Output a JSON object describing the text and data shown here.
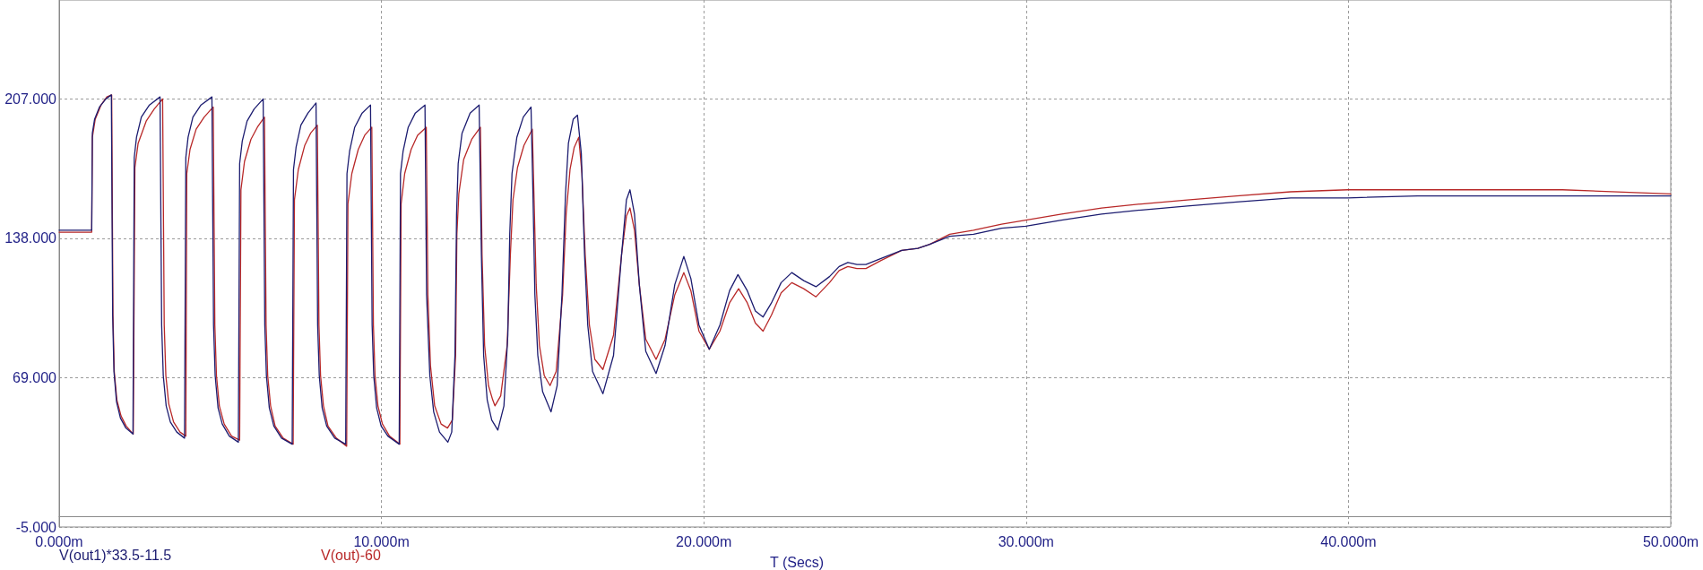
{
  "chart_data": {
    "type": "line",
    "xlabel": "T (Secs)",
    "series": [
      {
        "name": "V(out1)*33.5-11.5",
        "color": "#1c1c70",
        "x": [
          0,
          1.01,
          1.03,
          1.1,
          1.25,
          1.45,
          1.62,
          1.66,
          1.7,
          1.78,
          1.9,
          2.07,
          2.29,
          2.33,
          2.4,
          2.55,
          2.8,
          3.13,
          3.18,
          3.23,
          3.32,
          3.45,
          3.65,
          3.89,
          3.93,
          4.0,
          4.15,
          4.4,
          4.74,
          4.79,
          4.84,
          4.93,
          5.06,
          5.28,
          5.56,
          5.6,
          5.68,
          5.83,
          6.05,
          6.33,
          6.38,
          6.43,
          6.52,
          6.66,
          6.9,
          7.23,
          7.27,
          7.35,
          7.5,
          7.72,
          7.97,
          8.02,
          8.07,
          8.16,
          8.3,
          8.55,
          8.89,
          8.93,
          9.01,
          9.17,
          9.4,
          9.66,
          9.71,
          9.76,
          9.85,
          9.99,
          10.2,
          10.55,
          10.59,
          10.67,
          10.83,
          11.05,
          11.35,
          11.4,
          11.5,
          11.62,
          11.8,
          12.06,
          12.18,
          12.28,
          12.33,
          12.38,
          12.5,
          12.75,
          13.03,
          13.1,
          13.17,
          13.28,
          13.42,
          13.61,
          13.8,
          13.92,
          13.98,
          14.05,
          14.2,
          14.4,
          14.64,
          14.7,
          14.76,
          14.85,
          15.0,
          15.26,
          15.45,
          15.6,
          15.71,
          15.8,
          15.95,
          16.08,
          16.2,
          16.3,
          16.4,
          16.55,
          16.87,
          17.2,
          17.45,
          17.6,
          17.71,
          17.85,
          18.0,
          18.2,
          18.52,
          18.8,
          19.1,
          19.38,
          19.6,
          19.85,
          20.17,
          20.5,
          20.8,
          21.06,
          21.35,
          21.6,
          21.84,
          22.1,
          22.4,
          22.73,
          23.1,
          23.48,
          23.9,
          24.2,
          24.47,
          24.75,
          25.03,
          25.5,
          26.14,
          26.64,
          27.01,
          27.63,
          28.37,
          29.24,
          29.99,
          31.1,
          32.34,
          33.58,
          35.0,
          36.53,
          38.21,
          39.98,
          42.14,
          44.39,
          46.64,
          50
        ],
        "values": [
          142,
          142,
          190,
          197,
          203,
          207,
          209,
          100,
          72,
          57,
          49,
          44,
          41,
          178,
          188,
          198,
          204,
          208,
          95,
          70,
          55,
          47,
          42,
          39,
          178,
          188,
          198,
          204,
          208,
          95,
          70,
          54,
          46,
          40,
          37,
          175,
          186,
          196,
          202,
          207,
          95,
          70,
          54,
          45,
          39,
          36,
          172,
          183,
          194,
          200,
          205,
          95,
          70,
          54,
          45,
          39,
          36,
          170,
          181,
          193,
          200,
          204,
          95,
          70,
          54,
          45,
          40,
          36,
          170,
          181,
          193,
          200,
          204,
          110,
          70,
          52,
          42,
          37,
          42,
          80,
          150,
          175,
          190,
          200,
          204,
          130,
          80,
          58,
          48,
          43,
          55,
          90,
          140,
          170,
          188,
          198,
          203,
          160,
          110,
          80,
          62,
          52,
          65,
          110,
          160,
          185,
          197,
          199,
          180,
          130,
          95,
          72,
          61,
          80,
          130,
          157,
          162,
          150,
          115,
          82,
          71,
          85,
          115,
          129,
          118,
          95,
          83,
          95,
          112,
          120,
          112,
          102,
          99,
          106,
          116,
          121,
          117,
          114,
          119,
          124,
          126,
          125,
          125,
          128,
          132,
          133,
          135,
          139,
          140,
          143,
          144,
          147,
          150,
          152,
          154,
          156,
          158,
          158,
          159,
          159,
          159,
          159
        ]
      },
      {
        "name": "V(out)-60",
        "color": "#b82828",
        "x": [
          0,
          1.01,
          1.03,
          1.12,
          1.3,
          1.48,
          1.63,
          1.67,
          1.71,
          1.79,
          1.92,
          2.08,
          2.3,
          2.35,
          2.45,
          2.7,
          2.95,
          3.21,
          3.26,
          3.31,
          3.4,
          3.55,
          3.75,
          3.93,
          3.96,
          4.06,
          4.25,
          4.5,
          4.78,
          4.83,
          4.88,
          4.97,
          5.12,
          5.35,
          5.6,
          5.64,
          5.75,
          5.95,
          6.15,
          6.37,
          6.42,
          6.47,
          6.56,
          6.7,
          6.95,
          7.26,
          7.3,
          7.42,
          7.62,
          7.8,
          8.01,
          8.06,
          8.11,
          8.2,
          8.34,
          8.6,
          8.92,
          8.96,
          9.08,
          9.28,
          9.48,
          9.7,
          9.75,
          9.8,
          9.89,
          10.03,
          10.25,
          10.57,
          10.61,
          10.72,
          10.92,
          11.12,
          11.39,
          11.44,
          11.52,
          11.65,
          11.85,
          12.05,
          12.2,
          12.3,
          12.34,
          12.4,
          12.55,
          12.8,
          13.07,
          13.12,
          13.2,
          13.32,
          13.45,
          13.52,
          13.7,
          13.9,
          14.0,
          14.08,
          14.22,
          14.42,
          14.68,
          14.73,
          14.8,
          14.9,
          15.05,
          15.23,
          15.42,
          15.62,
          15.73,
          15.85,
          15.98,
          16.12,
          16.22,
          16.32,
          16.45,
          16.62,
          16.87,
          17.2,
          17.45,
          17.6,
          17.71,
          17.85,
          18.0,
          18.2,
          18.52,
          18.8,
          19.1,
          19.38,
          19.6,
          19.85,
          20.17,
          20.5,
          20.8,
          21.08,
          21.35,
          21.6,
          21.84,
          22.1,
          22.4,
          22.73,
          23.1,
          23.48,
          23.9,
          24.2,
          24.47,
          24.75,
          25.03,
          25.5,
          26.14,
          26.64,
          27.01,
          27.63,
          28.37,
          29.24,
          29.99,
          31.1,
          32.34,
          33.58,
          35.0,
          36.53,
          38.21,
          39.98,
          42.14,
          44.39,
          46.64,
          50
        ],
        "values": [
          141,
          141,
          188,
          197,
          204,
          208,
          209,
          100,
          72,
          58,
          50,
          45,
          41,
          173,
          185,
          196,
          202,
          207,
          95,
          70,
          56,
          47,
          42,
          40,
          170,
          182,
          192,
          198,
          203,
          95,
          70,
          55,
          46,
          40,
          38,
          162,
          176,
          187,
          193,
          198,
          95,
          70,
          55,
          45,
          39,
          36,
          157,
          172,
          184,
          190,
          194,
          95,
          70,
          55,
          45,
          39,
          35,
          155,
          170,
          182,
          189,
          193,
          95,
          70,
          55,
          46,
          40,
          36,
          155,
          170,
          182,
          189,
          193,
          110,
          75,
          55,
          46,
          44,
          48,
          80,
          140,
          160,
          177,
          187,
          193,
          130,
          85,
          65,
          58,
          55,
          60,
          85,
          130,
          157,
          173,
          184,
          192,
          160,
          115,
          85,
          70,
          65,
          72,
          110,
          150,
          172,
          183,
          188,
          170,
          130,
          95,
          78,
          73,
          90,
          130,
          149,
          153,
          142,
          115,
          88,
          78,
          88,
          110,
          121,
          112,
          92,
          83,
          92,
          106,
          113,
          106,
          96,
          92,
          100,
          111,
          116,
          113,
          109,
          116,
          122,
          124,
          123,
          123,
          127,
          132,
          133,
          135,
          140,
          142,
          145,
          147,
          150,
          153,
          155,
          157,
          159,
          161,
          162,
          162,
          162,
          162,
          160
        ]
      }
    ],
    "xlim": [
      0,
      50
    ],
    "xticks": [
      {
        "value": 0,
        "label": "0.000m"
      },
      {
        "value": 10,
        "label": "10.000m"
      },
      {
        "value": 20,
        "label": "20.000m"
      },
      {
        "value": 30,
        "label": "30.000m"
      },
      {
        "value": 40,
        "label": "40.000m"
      },
      {
        "value": 50,
        "label": "50.000m"
      }
    ],
    "ylim": [
      -5,
      256
    ],
    "yticks": [
      {
        "value": -5,
        "label": "-5.000"
      },
      {
        "value": 0,
        "label": null
      },
      {
        "value": 69,
        "label": "69.000"
      },
      {
        "value": 138,
        "label": "138.000"
      },
      {
        "value": 207,
        "label": "207.000"
      }
    ],
    "grid": true,
    "legend": "bottom left",
    "marker": "none",
    "line_style": "solid"
  }
}
